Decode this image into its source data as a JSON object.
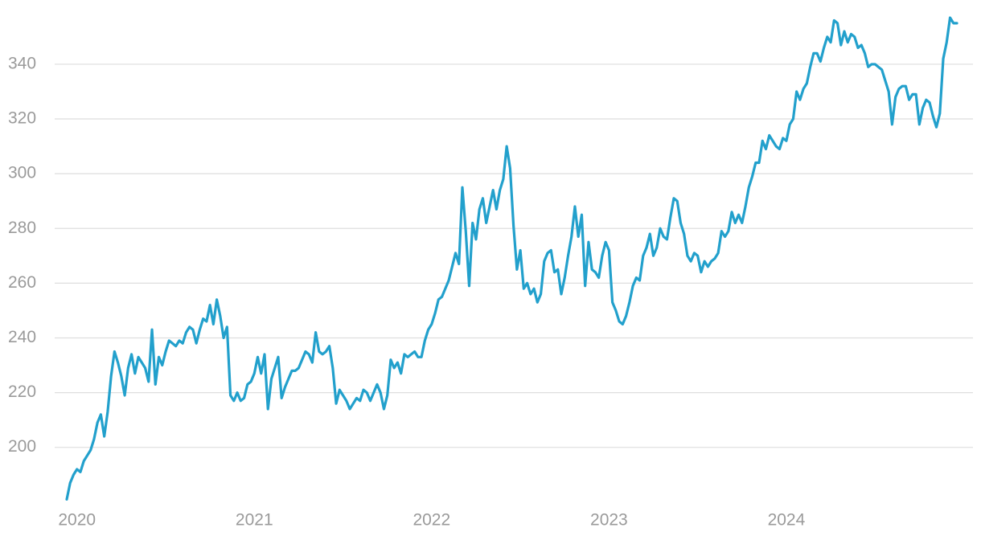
{
  "chart_data": {
    "type": "line",
    "categories": [
      null,
      null,
      null,
      "2020",
      null,
      null,
      null,
      null,
      null,
      null,
      null,
      null,
      null,
      null,
      null,
      null,
      null,
      null,
      null,
      null,
      null,
      null,
      null,
      null,
      null,
      null,
      null,
      null,
      null,
      null,
      null,
      null,
      null,
      null,
      null,
      null,
      null,
      null,
      null,
      null,
      null,
      null,
      null,
      null,
      null,
      null,
      null,
      null,
      null,
      null,
      null,
      null,
      null,
      null,
      null,
      "2021",
      null,
      null,
      null,
      null,
      null,
      null,
      null,
      null,
      null,
      null,
      null,
      null,
      null,
      null,
      null,
      null,
      null,
      null,
      null,
      null,
      null,
      null,
      null,
      null,
      null,
      null,
      null,
      null,
      null,
      null,
      null,
      null,
      null,
      null,
      null,
      null,
      null,
      null,
      null,
      null,
      null,
      null,
      null,
      null,
      null,
      null,
      null,
      null,
      null,
      null,
      null,
      "2022",
      null,
      null,
      null,
      null,
      null,
      null,
      null,
      null,
      null,
      null,
      null,
      null,
      null,
      null,
      null,
      null,
      null,
      null,
      null,
      null,
      null,
      null,
      null,
      null,
      null,
      null,
      null,
      null,
      null,
      null,
      null,
      null,
      null,
      null,
      null,
      null,
      null,
      null,
      null,
      null,
      null,
      null,
      null,
      null,
      null,
      null,
      null,
      null,
      null,
      null,
      null,
      "2023",
      null,
      null,
      null,
      null,
      null,
      null,
      null,
      null,
      null,
      null,
      null,
      null,
      null,
      null,
      null,
      null,
      null,
      null,
      null,
      null,
      null,
      null,
      null,
      null,
      null,
      null,
      null,
      null,
      null,
      null,
      null,
      null,
      null,
      null,
      null,
      null,
      null,
      null,
      null,
      null,
      null,
      null,
      null,
      null,
      null,
      null,
      null,
      null,
      null,
      null,
      null,
      "2024",
      null,
      null,
      null,
      null,
      null,
      null,
      null,
      null,
      null,
      null,
      null,
      null,
      null,
      null,
      null,
      null,
      null,
      null,
      null,
      null,
      null,
      null,
      null,
      null,
      null,
      null,
      null,
      null,
      null,
      null,
      null,
      null,
      null,
      null,
      null,
      null,
      null,
      null,
      null,
      null,
      null,
      null,
      null,
      null,
      null,
      null,
      null,
      null,
      null,
      null
    ],
    "values": [
      181,
      187,
      190,
      192,
      191,
      195,
      197,
      199,
      203,
      209,
      212,
      204,
      213,
      226,
      235,
      231,
      226,
      219,
      229,
      234,
      227,
      233,
      231,
      229,
      224,
      243,
      223,
      233,
      230,
      235,
      239,
      238,
      237,
      239,
      238,
      242,
      244,
      243,
      238,
      243,
      247,
      246,
      252,
      245,
      254,
      248,
      240,
      244,
      219,
      217,
      220,
      217,
      218,
      223,
      224,
      227,
      233,
      227,
      234,
      214,
      225,
      229,
      233,
      218,
      222,
      225,
      228,
      228,
      229,
      232,
      235,
      234,
      231,
      242,
      235,
      234,
      235,
      237,
      229,
      216,
      221,
      219,
      217,
      214,
      216,
      218,
      217,
      221,
      220,
      217,
      220,
      223,
      220,
      214,
      219,
      232,
      229,
      231,
      227,
      234,
      233,
      234,
      235,
      233,
      233,
      239,
      243,
      245,
      249,
      254,
      255,
      258,
      261,
      266,
      271,
      267,
      295,
      279,
      259,
      282,
      276,
      287,
      291,
      282,
      288,
      294,
      287,
      294,
      298,
      310,
      302,
      281,
      265,
      272,
      258,
      260,
      256,
      258,
      253,
      256,
      268,
      271,
      272,
      264,
      265,
      256,
      262,
      270,
      277,
      288,
      277,
      285,
      259,
      275,
      265,
      264,
      262,
      270,
      275,
      272,
      253,
      250,
      246,
      245,
      248,
      253,
      259,
      262,
      261,
      270,
      273,
      278,
      270,
      273,
      280,
      277,
      276,
      284,
      291,
      290,
      282,
      278,
      270,
      268,
      271,
      270,
      264,
      268,
      266,
      268,
      269,
      271,
      279,
      277,
      279,
      286,
      282,
      285,
      282,
      288,
      295,
      299,
      304,
      304,
      312,
      309,
      314,
      312,
      310,
      309,
      313,
      312,
      318,
      320,
      330,
      327,
      331,
      333,
      339,
      344,
      344,
      341,
      346,
      350,
      348,
      356,
      355,
      347,
      352,
      348,
      351,
      350,
      346,
      347,
      344,
      339,
      340,
      340,
      339,
      338,
      334,
      330,
      318,
      328,
      331,
      332,
      332,
      327,
      329,
      329,
      318,
      324,
      327,
      326,
      321,
      317,
      322,
      342,
      348,
      357,
      355,
      355
    ],
    "color": "#22a0cc",
    "ylim": [
      182,
      362
    ],
    "yticks": [
      200,
      220,
      240,
      260,
      280,
      300,
      320,
      340
    ],
    "grid": true
  }
}
